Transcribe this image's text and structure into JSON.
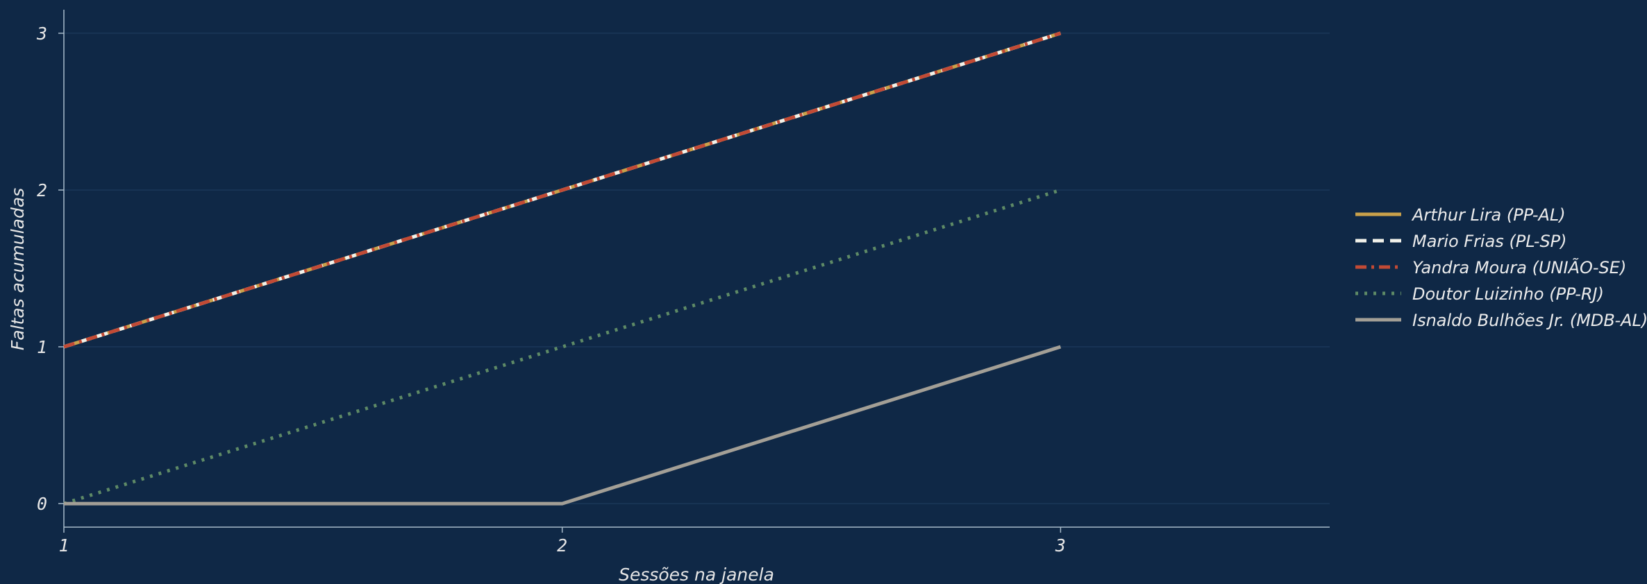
{
  "chart_data": {
    "type": "line",
    "xlabel": "Sessões na janela",
    "ylabel": "Faltas acumuladas",
    "x": [
      1,
      2,
      3
    ],
    "xlim": [
      1,
      3.54
    ],
    "ylim": [
      -0.15,
      3.15
    ],
    "xticks": [
      1,
      2,
      3
    ],
    "yticks": [
      0,
      1,
      2,
      3
    ],
    "grid": "horizontal",
    "legend_position": "right",
    "series": [
      {
        "name": "Arthur Lira (PP-AL)",
        "values": [
          1,
          2,
          3
        ],
        "color": "#c9a14a",
        "style": "solid"
      },
      {
        "name": "Mario Frias (PL-SP)",
        "values": [
          1,
          2,
          3
        ],
        "color": "#f2f2ea",
        "style": "dashed"
      },
      {
        "name": "Yandra Moura (UNIÃO-SE)",
        "values": [
          1,
          2,
          3
        ],
        "color": "#c24a35",
        "style": "dashdot"
      },
      {
        "name": "Doutor Luizinho (PP-RJ)",
        "values": [
          0,
          1,
          2
        ],
        "color": "#5e8a66",
        "style": "dotted"
      },
      {
        "name": "Isnaldo Bulhões Jr. (MDB-AL)",
        "values": [
          0,
          0,
          1
        ],
        "color": "#a39f96",
        "style": "solid"
      }
    ]
  }
}
